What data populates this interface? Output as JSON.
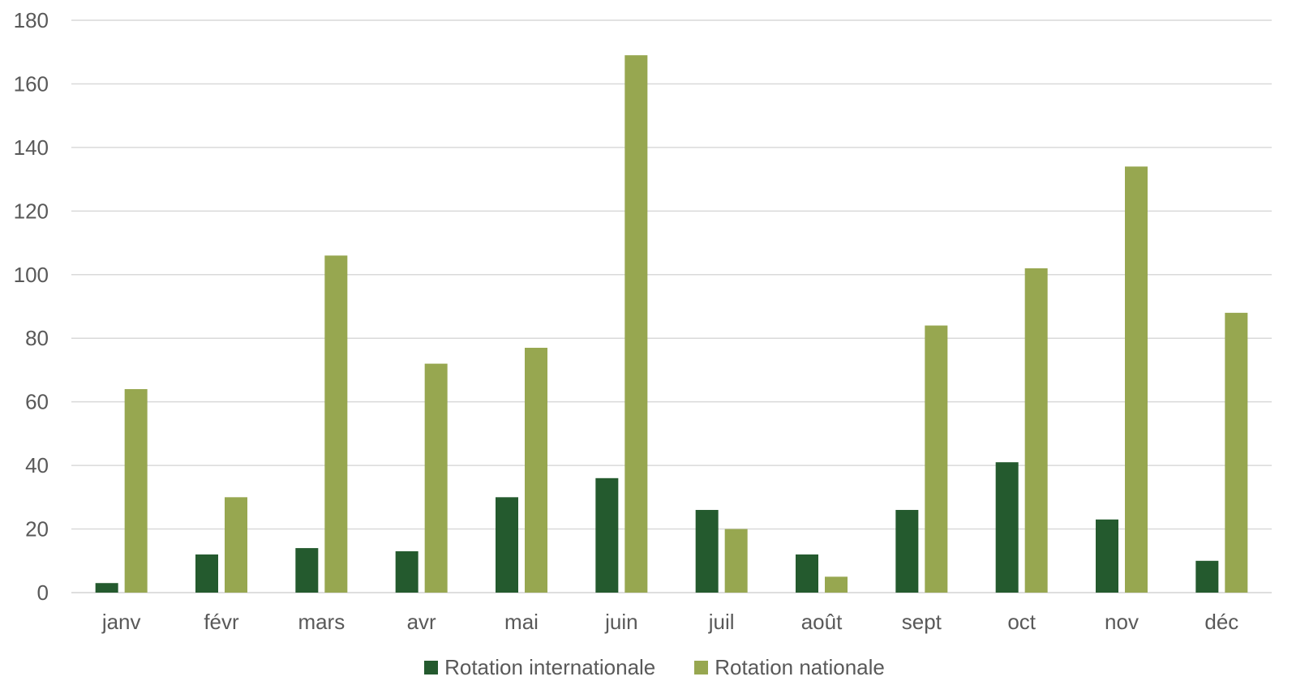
{
  "chart_data": {
    "type": "bar",
    "categories": [
      "janv",
      "févr",
      "mars",
      "avr",
      "mai",
      "juin",
      "juil",
      "août",
      "sept",
      "oct",
      "nov",
      "déc"
    ],
    "series": [
      {
        "name": "Rotation internationale",
        "color": "#245a2e",
        "values": [
          3,
          12,
          14,
          13,
          30,
          36,
          26,
          12,
          26,
          41,
          23,
          10
        ]
      },
      {
        "name": "Rotation nationale",
        "color": "#97a750",
        "values": [
          64,
          30,
          106,
          72,
          77,
          169,
          20,
          5,
          84,
          102,
          134,
          88
        ]
      }
    ],
    "y_ticks": [
      "0",
      "20",
      "40",
      "60",
      "80",
      "100",
      "120",
      "140",
      "160",
      "180"
    ],
    "ylim": [
      0,
      180
    ],
    "grid": true,
    "legend_position": "bottom"
  }
}
